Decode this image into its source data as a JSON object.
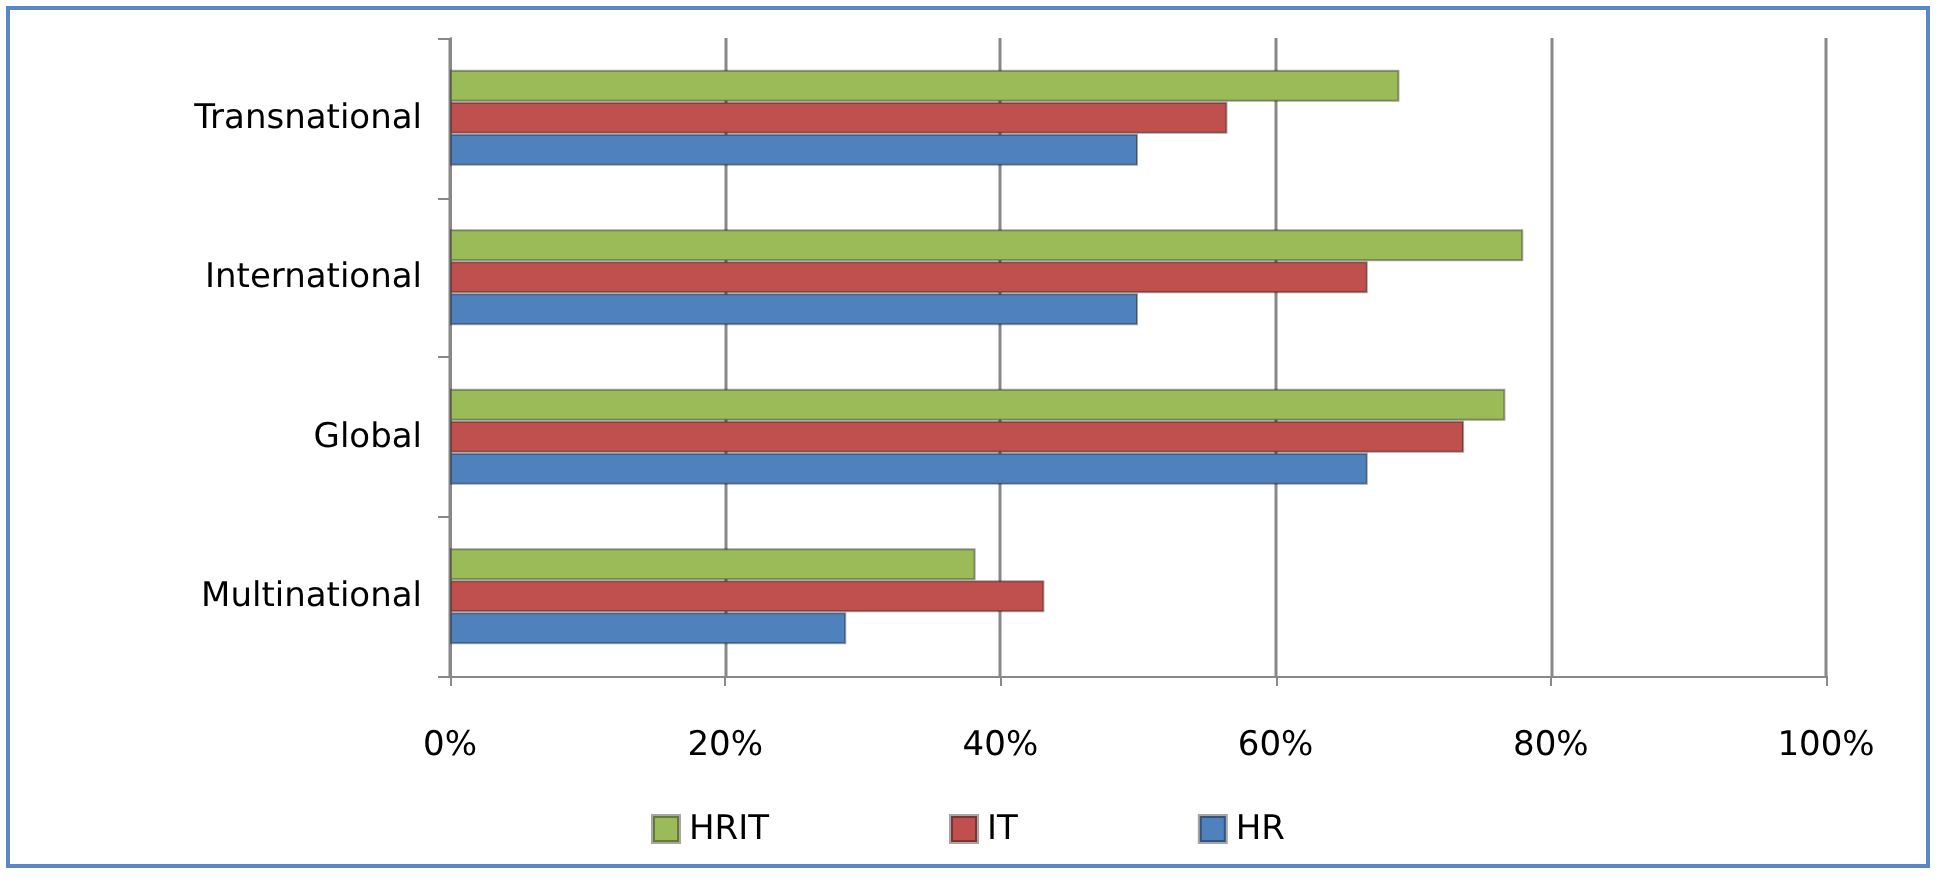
{
  "chart_data": {
    "type": "bar",
    "orientation": "horizontal",
    "categories": [
      "Transnational",
      "International",
      "Global",
      "Multinational"
    ],
    "series": [
      {
        "name": "HRIT",
        "color": "#9bbb59",
        "values": [
          69,
          78,
          76.7,
          38.2
        ]
      },
      {
        "name": "IT",
        "color": "#c0504d",
        "values": [
          56.5,
          66.7,
          73.7,
          43.2
        ]
      },
      {
        "name": "HR",
        "color": "#4f81bd",
        "values": [
          50,
          50,
          66.7,
          28.8
        ]
      }
    ],
    "xlim": [
      0,
      100
    ],
    "xticks": [
      {
        "value": 0,
        "label": "0%"
      },
      {
        "value": 20,
        "label": "20%"
      },
      {
        "value": 40,
        "label": "40%"
      },
      {
        "value": 60,
        "label": "60%"
      },
      {
        "value": 80,
        "label": "80%"
      },
      {
        "value": 100,
        "label": "100%"
      }
    ],
    "grid": "x",
    "legend": "bottom"
  }
}
